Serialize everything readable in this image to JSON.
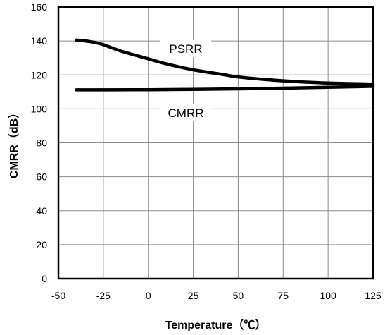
{
  "chart_data": {
    "type": "line",
    "title": "",
    "xlabel": "Temperature（℃）",
    "ylabel": "CMRR（dB）",
    "xlim": [
      -50,
      125
    ],
    "ylim": [
      0,
      160
    ],
    "xticks": [
      -50,
      -25,
      0,
      25,
      50,
      75,
      100,
      125
    ],
    "yticks": [
      0,
      20,
      40,
      60,
      80,
      100,
      120,
      140,
      160
    ],
    "grid": true,
    "legend": "none",
    "series": [
      {
        "name": "PSRR",
        "x": [
          -40,
          -35,
          -30,
          -25,
          -15,
          0,
          10,
          25,
          40,
          50,
          65,
          80,
          100,
          125
        ],
        "y": [
          140.5,
          140,
          139.2,
          137.8,
          134,
          129.5,
          126.5,
          123,
          120.5,
          118.8,
          117.3,
          116.2,
          115.2,
          114.6
        ]
      },
      {
        "name": "CMRR",
        "x": [
          -40,
          -25,
          0,
          25,
          50,
          75,
          100,
          125
        ],
        "y": [
          111.2,
          111.2,
          111.3,
          111.5,
          111.8,
          112.2,
          112.7,
          113.3
        ]
      }
    ],
    "annotations": [
      {
        "text": "PSRR",
        "series": "PSRR"
      },
      {
        "text": "CMRR",
        "series": "CMRR"
      }
    ]
  }
}
